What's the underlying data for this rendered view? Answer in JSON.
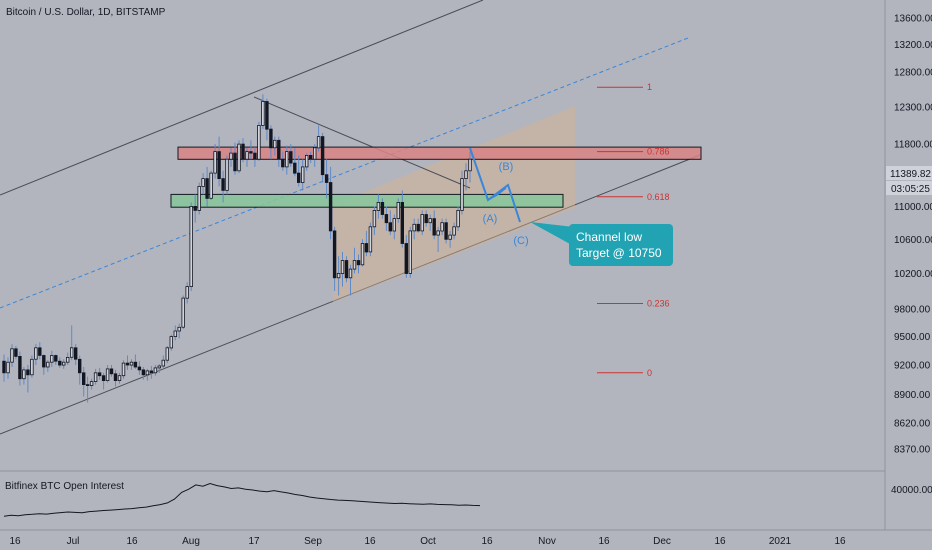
{
  "header": {
    "title": "Bitcoin / U.S. Dollar, 1D, BITSTAMP"
  },
  "chart_data": {
    "type": "candlestick",
    "symbol": "Bitcoin / U.S. Dollar",
    "interval": "1D",
    "exchange": "BITSTAMP",
    "y_ticks": [
      13600,
      13200,
      12800,
      12300,
      11800,
      11400,
      11000,
      10600,
      10200,
      9800,
      9500,
      9200,
      8900,
      8620,
      8370
    ],
    "y_tick_labels": [
      "13600.00",
      "13200.00",
      "12800.00",
      "12300.00",
      "11800.00",
      "11400.00",
      "11000.00",
      "10600.00",
      "10200.00",
      "9800.00",
      "9500.00",
      "9200.00",
      "8900.00",
      "8620.00",
      "8370.00"
    ],
    "ylim": [
      8150,
      13850
    ],
    "y_scale": "log",
    "current_price": "11389.82",
    "countdown": "03:05:25",
    "x_tick_labels": [
      "16",
      "Jul",
      "16",
      "Aug",
      "17",
      "Sep",
      "16",
      "Oct",
      "16",
      "Nov",
      "16",
      "Dec",
      "16",
      "2021",
      "16"
    ],
    "candles": [
      [
        9240,
        9310,
        9030,
        9120
      ],
      [
        9120,
        9280,
        9060,
        9230
      ],
      [
        9230,
        9420,
        9180,
        9370
      ],
      [
        9370,
        9400,
        9260,
        9290
      ],
      [
        9290,
        9340,
        8990,
        9060
      ],
      [
        9060,
        9180,
        9000,
        9150
      ],
      [
        9150,
        9200,
        8920,
        9100
      ],
      [
        9100,
        9300,
        9070,
        9260
      ],
      [
        9260,
        9420,
        9200,
        9380
      ],
      [
        9380,
        9440,
        9260,
        9300
      ],
      [
        9300,
        9310,
        9100,
        9180
      ],
      [
        9180,
        9250,
        9130,
        9230
      ],
      [
        9230,
        9350,
        9180,
        9300
      ],
      [
        9300,
        9310,
        9200,
        9240
      ],
      [
        9240,
        9280,
        9170,
        9200
      ],
      [
        9200,
        9260,
        9160,
        9230
      ],
      [
        9230,
        9330,
        9200,
        9280
      ],
      [
        9280,
        9620,
        9250,
        9380
      ],
      [
        9380,
        9420,
        9200,
        9260
      ],
      [
        9260,
        9300,
        9000,
        9120
      ],
      [
        9120,
        9180,
        8880,
        9000
      ],
      [
        9000,
        9080,
        8820,
        8990
      ],
      [
        8990,
        9060,
        8950,
        9030
      ],
      [
        9030,
        9160,
        9000,
        9120
      ],
      [
        9120,
        9170,
        9050,
        9090
      ],
      [
        9090,
        9120,
        8950,
        9040
      ],
      [
        9040,
        9200,
        9020,
        9160
      ],
      [
        9160,
        9200,
        9080,
        9110
      ],
      [
        9110,
        9150,
        8980,
        9040
      ],
      [
        9040,
        9120,
        9010,
        9090
      ],
      [
        9090,
        9250,
        9060,
        9220
      ],
      [
        9220,
        9300,
        9150,
        9200
      ],
      [
        9200,
        9260,
        9150,
        9230
      ],
      [
        9230,
        9310,
        9160,
        9180
      ],
      [
        9180,
        9240,
        9100,
        9150
      ],
      [
        9150,
        9180,
        9050,
        9100
      ],
      [
        9100,
        9160,
        9040,
        9140
      ],
      [
        9140,
        9190,
        9060,
        9120
      ],
      [
        9120,
        9200,
        9090,
        9170
      ],
      [
        9170,
        9210,
        9120,
        9190
      ],
      [
        9190,
        9300,
        9170,
        9250
      ],
      [
        9250,
        9400,
        9220,
        9380
      ],
      [
        9380,
        9520,
        9350,
        9500
      ],
      [
        9500,
        9620,
        9460,
        9560
      ],
      [
        9560,
        9640,
        9480,
        9600
      ],
      [
        9600,
        9950,
        9580,
        9920
      ],
      [
        9920,
        10100,
        9860,
        10050
      ],
      [
        10050,
        11050,
        10000,
        11000
      ],
      [
        11000,
        11150,
        10800,
        10950
      ],
      [
        10950,
        11300,
        10900,
        11250
      ],
      [
        11250,
        11420,
        11150,
        11350
      ],
      [
        11350,
        11500,
        11000,
        11100
      ],
      [
        11100,
        11450,
        11080,
        11420
      ],
      [
        11420,
        11800,
        11350,
        11700
      ],
      [
        11700,
        11900,
        11250,
        11350
      ],
      [
        11350,
        11450,
        11050,
        11200
      ],
      [
        11200,
        11650,
        11150,
        11600
      ],
      [
        11600,
        11750,
        11500,
        11680
      ],
      [
        11680,
        11820,
        11400,
        11450
      ],
      [
        11450,
        11850,
        11420,
        11800
      ],
      [
        11800,
        11880,
        11560,
        11600
      ],
      [
        11600,
        11750,
        11500,
        11700
      ],
      [
        11700,
        11850,
        11600,
        11680
      ],
      [
        11680,
        11760,
        11500,
        11600
      ],
      [
        11600,
        12100,
        11580,
        12050
      ],
      [
        12050,
        12480,
        12000,
        12380
      ],
      [
        12380,
        12420,
        11850,
        12000
      ],
      [
        12000,
        12050,
        11600,
        11750
      ],
      [
        11750,
        11900,
        11650,
        11850
      ],
      [
        11850,
        11900,
        11500,
        11600
      ],
      [
        11600,
        11700,
        11450,
        11500
      ],
      [
        11500,
        11780,
        11400,
        11700
      ],
      [
        11700,
        11800,
        11500,
        11550
      ],
      [
        11550,
        11750,
        11380,
        11420
      ],
      [
        11420,
        11650,
        11250,
        11300
      ],
      [
        11300,
        11600,
        11200,
        11500
      ],
      [
        11500,
        11680,
        11450,
        11650
      ],
      [
        11650,
        11700,
        11550,
        11600
      ],
      [
        11600,
        11800,
        11500,
        11750
      ],
      [
        11750,
        12050,
        11700,
        11900
      ],
      [
        11900,
        11950,
        11300,
        11400
      ],
      [
        11400,
        11600,
        11100,
        11300
      ],
      [
        11300,
        11500,
        10600,
        10700
      ],
      [
        10700,
        10750,
        10000,
        10150
      ],
      [
        10150,
        10400,
        9950,
        10200
      ],
      [
        10200,
        10450,
        10050,
        10350
      ],
      [
        10350,
        10400,
        10100,
        10150
      ],
      [
        10150,
        10300,
        9950,
        10250
      ],
      [
        10250,
        10500,
        10200,
        10350
      ],
      [
        10350,
        10420,
        10200,
        10300
      ],
      [
        10300,
        10600,
        10280,
        10550
      ],
      [
        10550,
        10700,
        10400,
        10450
      ],
      [
        10450,
        10800,
        10400,
        10750
      ],
      [
        10750,
        11000,
        10650,
        10950
      ],
      [
        10950,
        11150,
        10850,
        11050
      ],
      [
        11050,
        11100,
        10850,
        10900
      ],
      [
        10900,
        11000,
        10700,
        10800
      ],
      [
        10800,
        10950,
        10650,
        10700
      ],
      [
        10700,
        10900,
        10600,
        10850
      ],
      [
        10850,
        11100,
        10800,
        11050
      ],
      [
        11050,
        11200,
        10500,
        10550
      ],
      [
        10550,
        10650,
        10150,
        10200
      ],
      [
        10200,
        10750,
        10150,
        10700
      ],
      [
        10700,
        10850,
        10600,
        10780
      ],
      [
        10780,
        10850,
        10680,
        10700
      ],
      [
        10700,
        10950,
        10650,
        10900
      ],
      [
        10900,
        10950,
        10750,
        10800
      ],
      [
        10800,
        10900,
        10700,
        10850
      ],
      [
        10850,
        10950,
        10600,
        10650
      ],
      [
        10650,
        10750,
        10450,
        10700
      ],
      [
        10700,
        10850,
        10650,
        10800
      ],
      [
        10800,
        10850,
        10550,
        10600
      ],
      [
        10600,
        10700,
        10500,
        10650
      ],
      [
        10650,
        10800,
        10600,
        10750
      ],
      [
        10750,
        11000,
        10700,
        10950
      ],
      [
        10950,
        11450,
        10900,
        11350
      ],
      [
        11350,
        11550,
        11200,
        11450
      ],
      [
        11450,
        11700,
        11300,
        11600
      ]
    ],
    "fibonacci_levels": [
      {
        "label": "1",
        "value": 12580
      },
      {
        "label": "0.786",
        "value": 11700
      },
      {
        "label": "0.618",
        "value": 11120
      },
      {
        "label": "0.236",
        "value": 9860
      },
      {
        "label": "0",
        "value": 9120
      }
    ],
    "zones": [
      {
        "name": "resistance",
        "low": 11600,
        "high": 11760,
        "color": "#d98485"
      },
      {
        "name": "support",
        "low": 10990,
        "high": 11150,
        "color": "#86c79a"
      }
    ],
    "wave_labels": [
      "(A)",
      "(B)",
      "(C)"
    ],
    "callout": {
      "line1": "Channel low",
      "line2": "Target @ 10750"
    },
    "indicator": {
      "title": "Bitfinex BTC Open Interest",
      "tick_label": "40000.00",
      "values": [
        24000,
        24500,
        24200,
        24800,
        25000,
        25300,
        25100,
        25600,
        25900,
        26200,
        26000,
        25800,
        26400,
        26700,
        27000,
        27200,
        27500,
        27800,
        28000,
        28400,
        28800,
        29500,
        30100,
        31000,
        33000,
        36500,
        38200,
        40500,
        39800,
        41200,
        40100,
        39400,
        38600,
        38900,
        38200,
        37800,
        37200,
        36900,
        37500,
        36800,
        36200,
        35400,
        34900,
        34100,
        33600,
        33200,
        32800,
        32500,
        32300,
        32100,
        31900,
        31600,
        31300,
        31100,
        30900,
        30700,
        30800,
        30600,
        30400,
        30300,
        30500,
        30200,
        30100,
        30000,
        29800,
        29900,
        29700,
        29600
      ]
    },
    "colors": {
      "up": "#131722",
      "down": "#131722",
      "wick": "#5f89c8",
      "pattern_line": "#3a86d8",
      "fib_line": "#cc3333",
      "callout_bg": "#22a3b3",
      "channel_fill": "#d9b48f"
    }
  }
}
